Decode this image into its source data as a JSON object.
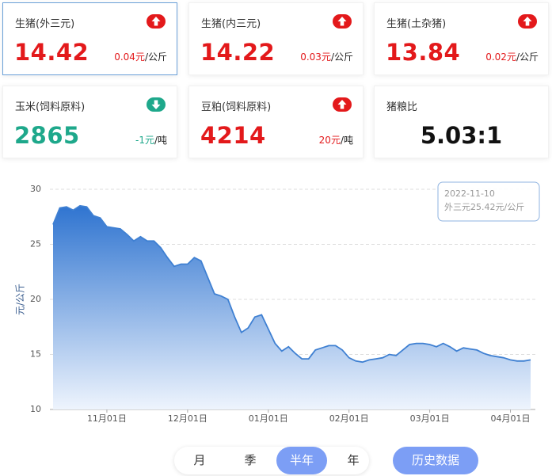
{
  "cards": [
    {
      "title": "生猪(外三元)",
      "value": "14.42",
      "change": "0.04元",
      "unit": "/公斤",
      "direction": "up",
      "color": "#e3191b",
      "selected": true
    },
    {
      "title": "生猪(内三元)",
      "value": "14.22",
      "change": "0.03元",
      "unit": "/公斤",
      "direction": "up",
      "color": "#e3191b"
    },
    {
      "title": "生猪(土杂猪)",
      "value": "13.84",
      "change": "0.02元",
      "unit": "/公斤",
      "direction": "up",
      "color": "#e3191b"
    },
    {
      "title": "玉米(饲料原料)",
      "value": "2865",
      "change": "-1元",
      "unit": "/吨",
      "direction": "down",
      "color": "#1ea88b"
    },
    {
      "title": "豆粕(饲料原料)",
      "value": "4214",
      "change": "20元",
      "unit": "/吨",
      "direction": "up",
      "color": "#e3191b"
    },
    {
      "title": "猪粮比",
      "value": "5.03:1"
    }
  ],
  "chart_data": {
    "type": "area",
    "y_label": "元/公斤",
    "color": "#3f80d2",
    "categories": [
      null,
      null,
      null,
      null,
      null,
      null,
      null,
      null,
      "11月01日",
      null,
      null,
      null,
      null,
      null,
      null,
      null,
      null,
      null,
      null,
      null,
      "12月01日",
      null,
      null,
      null,
      null,
      null,
      null,
      null,
      null,
      null,
      null,
      null,
      "01月01日",
      null,
      null,
      null,
      null,
      null,
      null,
      null,
      null,
      null,
      null,
      null,
      "02月01日",
      null,
      null,
      null,
      null,
      null,
      null,
      null,
      null,
      null,
      null,
      null,
      "03月01日",
      null,
      null,
      null,
      null,
      null,
      null,
      null,
      null,
      null,
      null,
      null,
      "04月01日",
      null,
      null,
      null
    ],
    "values": [
      26.8,
      28.3,
      28.4,
      28.1,
      28.5,
      28.4,
      27.6,
      27.4,
      26.6,
      26.5,
      26.4,
      25.9,
      25.3,
      25.7,
      25.3,
      25.3,
      24.7,
      23.8,
      23.0,
      23.2,
      23.2,
      23.8,
      23.5,
      22.0,
      20.5,
      20.3,
      20.0,
      18.4,
      17.0,
      17.4,
      18.4,
      18.6,
      17.3,
      16.0,
      15.3,
      15.7,
      15.1,
      14.6,
      14.6,
      15.4,
      15.6,
      15.8,
      15.8,
      15.4,
      14.7,
      14.4,
      14.3,
      14.5,
      14.6,
      14.7,
      15.0,
      14.9,
      15.4,
      15.9,
      16.0,
      16.0,
      15.9,
      15.7,
      16.0,
      15.7,
      15.3,
      15.6,
      15.5,
      15.4,
      15.1,
      14.9,
      14.8,
      14.7,
      14.5,
      14.4,
      14.4,
      14.5
    ],
    "ylim": [
      10,
      30
    ],
    "yticks": [
      10,
      15,
      20,
      25,
      30
    ],
    "grid": true,
    "tooltip": {
      "date": "2022-11-10",
      "label": "外三元25.42元/公斤"
    }
  },
  "tabs": [
    "月",
    "季",
    "半年",
    "年"
  ],
  "active_tab": 2,
  "button": "历史数据"
}
